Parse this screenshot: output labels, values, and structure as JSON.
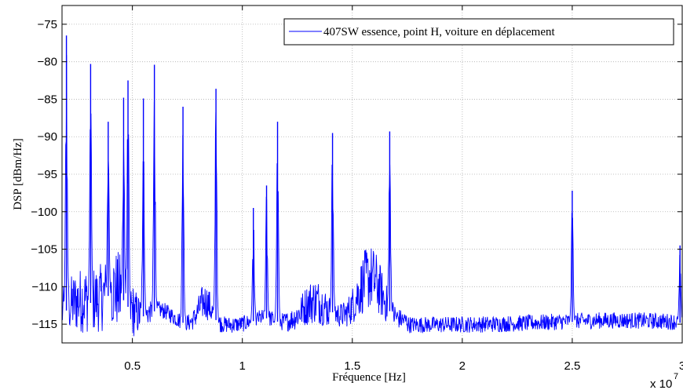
{
  "chart_data": {
    "type": "line",
    "title": "",
    "xlabel": "Fréquence [Hz]",
    "ylabel": "DSP [dBm/Hz]",
    "x_multiplier": "x 10",
    "x_exponent": "7",
    "xlim": [
      0.18,
      3.0
    ],
    "ylim": [
      -117.5,
      -72.5
    ],
    "xticks": [
      0.5,
      1,
      1.5,
      2,
      2.5,
      3
    ],
    "xtick_labels": [
      "0.5",
      "1",
      "1.5",
      "2",
      "2.5",
      "3"
    ],
    "yticks": [
      -115,
      -110,
      -105,
      -100,
      -95,
      -90,
      -85,
      -80,
      -75
    ],
    "ytick_labels": [
      "−115",
      "−110",
      "−105",
      "−100",
      "−95",
      "−90",
      "−85",
      "−80",
      "−75"
    ],
    "grid": true,
    "legend_position": "top-right",
    "series": [
      {
        "name": "407SW essence, point H, voiture en déplacement",
        "color": "#0000ff",
        "peaks": [
          {
            "x": 0.2,
            "y": -76.5
          },
          {
            "x": 0.31,
            "y": -80.3
          },
          {
            "x": 0.39,
            "y": -88.0
          },
          {
            "x": 0.46,
            "y": -84.8
          },
          {
            "x": 0.48,
            "y": -82.5
          },
          {
            "x": 0.55,
            "y": -84.9
          },
          {
            "x": 0.6,
            "y": -80.4
          },
          {
            "x": 0.73,
            "y": -86.0
          },
          {
            "x": 0.88,
            "y": -83.6
          },
          {
            "x": 1.05,
            "y": -99.5
          },
          {
            "x": 1.11,
            "y": -96.5
          },
          {
            "x": 1.16,
            "y": -88.0
          },
          {
            "x": 1.41,
            "y": -89.5
          },
          {
            "x": 1.67,
            "y": -89.3
          },
          {
            "x": 2.5,
            "y": -97.2
          },
          {
            "x": 2.99,
            "y": -104.5
          }
        ]
      }
    ]
  }
}
